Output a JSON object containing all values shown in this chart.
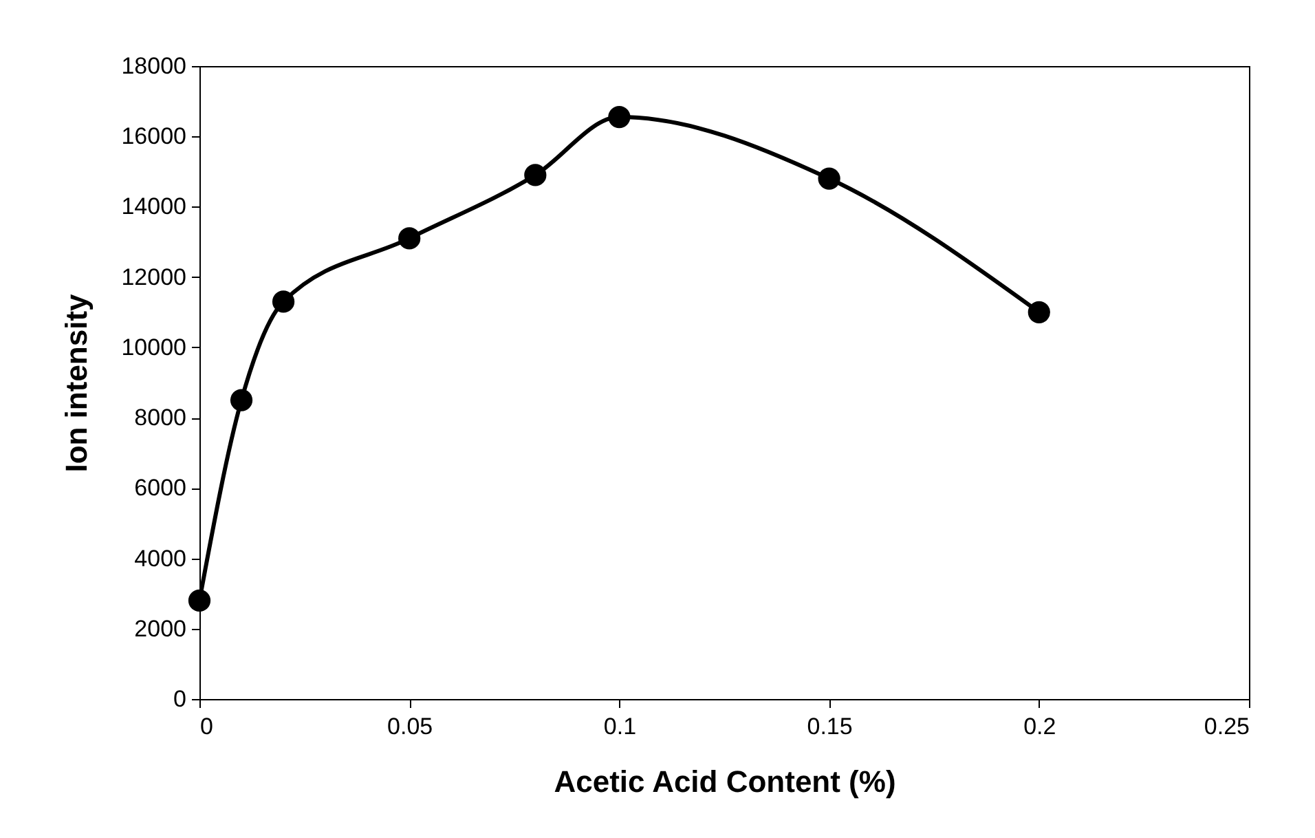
{
  "chart_data": {
    "type": "line",
    "xlabel": "Acetic Acid Content (%)",
    "ylabel": "Ion intensity",
    "x": [
      0,
      0.01,
      0.02,
      0.05,
      0.08,
      0.1,
      0.15,
      0.2
    ],
    "series": [
      {
        "color": "#000000",
        "values": [
          2800,
          8500,
          11300,
          13100,
          14900,
          16550,
          14800,
          11000
        ]
      }
    ],
    "xlim": [
      0,
      0.25
    ],
    "xticks": [
      0,
      0.05,
      0.1,
      0.15,
      0.2,
      0.25
    ],
    "ylim": [
      0,
      18000
    ],
    "yticks": [
      0,
      2000,
      4000,
      6000,
      8000,
      10000,
      12000,
      14000,
      16000,
      18000
    ],
    "grid": false,
    "marker": "circle",
    "line_style": "solid"
  }
}
